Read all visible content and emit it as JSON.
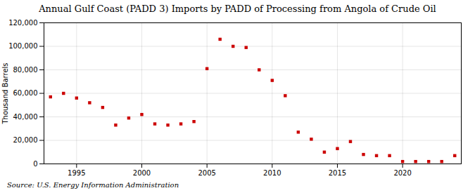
{
  "chart_data": {
    "type": "scatter",
    "title": "Annual Gulf Coast (PADD 3) Imports by PADD of Processing from Angola of Crude Oil",
    "ylabel": "Thousand Barrels",
    "source": "Source: U.S. Energy Information Administration",
    "x": [
      1993,
      1994,
      1995,
      1996,
      1997,
      1998,
      1999,
      2000,
      2001,
      2002,
      2003,
      2004,
      2005,
      2006,
      2007,
      2008,
      2009,
      2010,
      2011,
      2012,
      2013,
      2014,
      2015,
      2016,
      2017,
      2018,
      2019,
      2020,
      2021,
      2022,
      2023,
      2024
    ],
    "values": [
      57000,
      60000,
      56000,
      52000,
      48000,
      33000,
      39000,
      42000,
      34000,
      33000,
      34000,
      36000,
      81000,
      106000,
      100000,
      99000,
      80000,
      71000,
      58000,
      27000,
      21000,
      10000,
      13000,
      19000,
      8000,
      7000,
      7000,
      2000,
      2000,
      2000,
      2000,
      7000
    ],
    "color": "#cc0000",
    "marker": "square",
    "xlim": [
      1992.5,
      2024.5
    ],
    "xticks": [
      1995,
      2000,
      2005,
      2010,
      2015,
      2020
    ],
    "ylim": [
      0,
      120000
    ],
    "yticks": [
      0,
      {
        "value": 20000,
        "label": "20,000"
      },
      {
        "value": 40000,
        "label": "40,000"
      },
      {
        "value": 60000,
        "label": "60,000"
      },
      {
        "value": 80000,
        "label": "80,000"
      },
      {
        "value": 100000,
        "label": "100,000"
      },
      {
        "value": 120000,
        "label": "120,000"
      }
    ],
    "grid": true
  }
}
